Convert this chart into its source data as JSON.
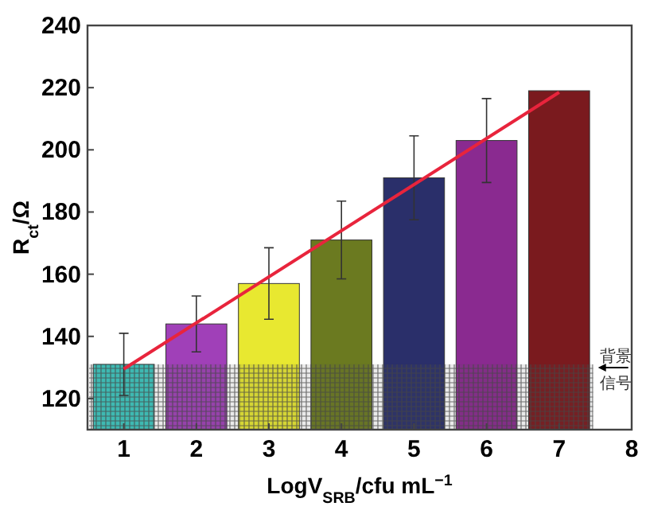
{
  "chart_data": {
    "type": "bar",
    "xlabel": "LogV$_{SRB}$/cfu mL$^{−1}$",
    "ylabel": "R$_{ct}$/Ω",
    "x": [
      1,
      2,
      3,
      4,
      5,
      6,
      7
    ],
    "series": [
      {
        "values": [
          131,
          144,
          157,
          171,
          191,
          203,
          219
        ],
        "colors": [
          "#3cc8c0",
          "#a040b8",
          "#e8e830",
          "#6b7a20",
          "#2a2f6a",
          "#8a2a90",
          "#7a1a1e"
        ],
        "errors": [
          10,
          9,
          11.5,
          12.5,
          13.5,
          13.5,
          null
        ]
      },
      {
        "type": "line",
        "x": [
          1,
          7
        ],
        "values": [
          129.5,
          218.5
        ],
        "color": "#e8243c"
      }
    ],
    "bands": [
      {
        "axis": "y",
        "from": 110,
        "to": 131,
        "label": "背景信号",
        "color": "#555555"
      }
    ],
    "xlim": [
      0.5,
      8
    ],
    "ylim": [
      110,
      240
    ],
    "xticks": [
      1,
      2,
      3,
      4,
      5,
      6,
      7,
      8
    ],
    "yticks": [
      120,
      140,
      160,
      180,
      200,
      220,
      240
    ]
  }
}
